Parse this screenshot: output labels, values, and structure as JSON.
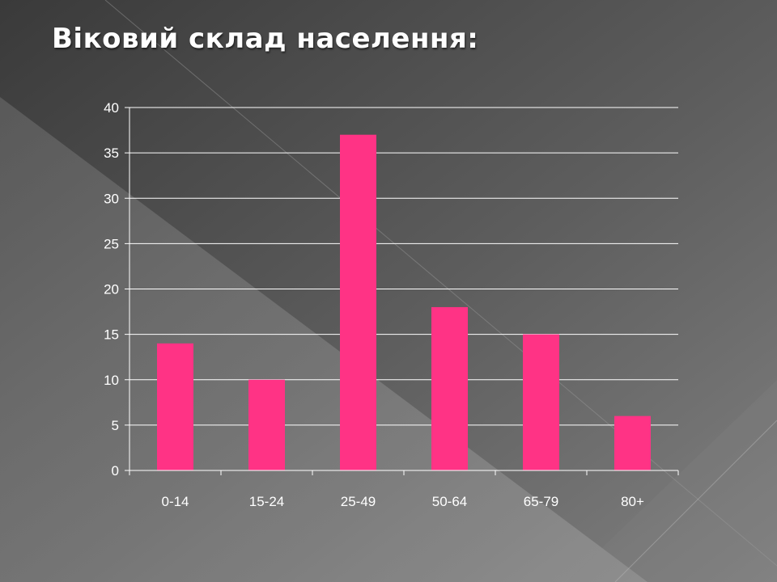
{
  "slide": {
    "title": "Віковий склад населення:"
  },
  "colors": {
    "bar": "#ff3385",
    "gridline": "#ffffff",
    "text": "#ffffff",
    "background_dark": "#3e3e3e",
    "background_light": "#9a9a9a"
  },
  "chart_data": {
    "type": "bar",
    "title": "",
    "xlabel": "",
    "ylabel": "",
    "categories": [
      "0-14",
      "15-24",
      "25-49",
      "50-64",
      "65-79",
      "80+"
    ],
    "values": [
      14,
      10,
      37,
      18,
      15,
      6
    ],
    "ylim": [
      0,
      40
    ],
    "yticks": [
      "0",
      "5",
      "10",
      "15",
      "20",
      "25",
      "30",
      "35",
      "40"
    ],
    "grid": true,
    "legend": "none"
  }
}
